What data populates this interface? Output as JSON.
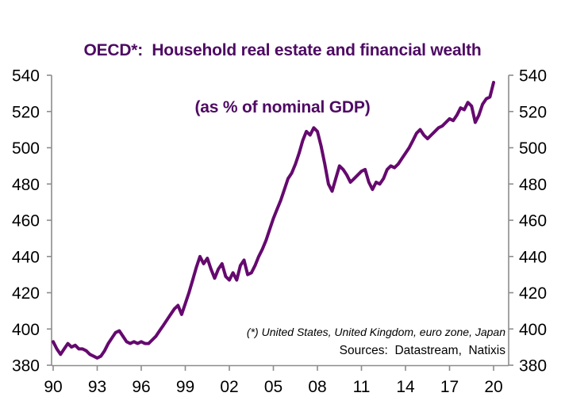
{
  "title": {
    "line1": "OECD*:  Household real estate and financial wealth",
    "line2": "(as % of nominal GDP)",
    "color": "#4E0A63"
  },
  "footnote": "(*) United States, United Kingdom, euro zone, Japan",
  "sources": "Sources:  Datastream,  Natixis",
  "chart_data": {
    "type": "line",
    "title": "OECD*: Household real estate and financial wealth (as % of nominal GDP)",
    "x_start": 1990,
    "x_step": 0.25,
    "x_end": 2020,
    "values": [
      393,
      389,
      386,
      389,
      392,
      390,
      391,
      389,
      389,
      388,
      386,
      385,
      384,
      385,
      388,
      392,
      395,
      398,
      399,
      396,
      393,
      392,
      393,
      392,
      393,
      392,
      392,
      394,
      396,
      399,
      402,
      405,
      408,
      411,
      413,
      408,
      414,
      420,
      427,
      434,
      440,
      436,
      439,
      433,
      428,
      433,
      436,
      429,
      427,
      431,
      427,
      435,
      438,
      430,
      431,
      435,
      440,
      444,
      449,
      455,
      461,
      466,
      471,
      477,
      483,
      486,
      491,
      497,
      504,
      509,
      507,
      511,
      509,
      501,
      491,
      480,
      476,
      483,
      490,
      488,
      485,
      481,
      483,
      485,
      487,
      488,
      481,
      477,
      481,
      480,
      483,
      488,
      490,
      489,
      491,
      494,
      497,
      500,
      504,
      508,
      510,
      507,
      505,
      507,
      509,
      511,
      512,
      514,
      516,
      515,
      518,
      522,
      521,
      525,
      523,
      514,
      518,
      524,
      527,
      528,
      536
    ],
    "x_tick_labels": [
      "90",
      "93",
      "96",
      "99",
      "02",
      "05",
      "08",
      "11",
      "14",
      "17",
      "20"
    ],
    "x_tick_years": [
      1990,
      1993,
      1996,
      1999,
      2002,
      2005,
      2008,
      2011,
      2014,
      2017,
      2020
    ],
    "y_ticks": [
      380,
      400,
      420,
      440,
      460,
      480,
      500,
      520,
      540
    ],
    "ylim": [
      380,
      540
    ],
    "grid": false,
    "legend": "none",
    "dual_y_axis": true,
    "line_color": "#65096F",
    "axis_color": "#8C8C8C"
  }
}
